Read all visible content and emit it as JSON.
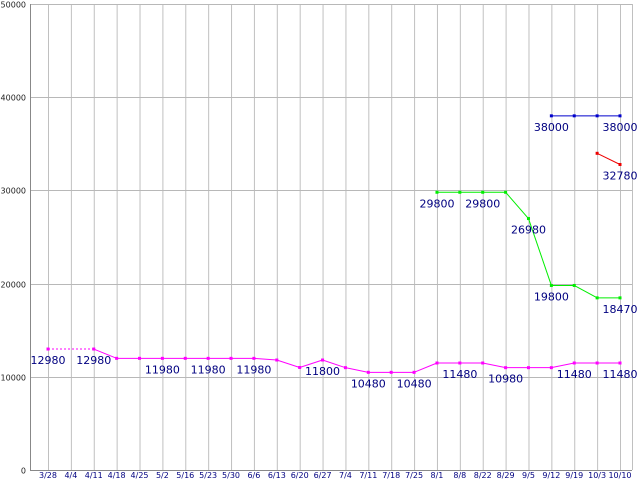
{
  "chart_data": {
    "type": "line",
    "title": "",
    "xlabel": "",
    "ylabel": "",
    "ylim": [
      0,
      50000
    ],
    "yticks": [
      "0",
      "10000",
      "20000",
      "30000",
      "40000",
      "50000"
    ],
    "grid": true,
    "legend": "none",
    "categories": [
      "3/28",
      "4/4",
      "4/11",
      "4/18",
      "4/25",
      "5/2",
      "5/16",
      "5/23",
      "5/30",
      "6/6",
      "6/13",
      "6/20",
      "6/27",
      "7/4",
      "7/11",
      "7/18",
      "7/25",
      "8/1",
      "8/8",
      "8/22",
      "8/29",
      "9/5",
      "9/12",
      "9/19",
      "10/3",
      "10/10"
    ],
    "series": [
      {
        "color": "#ff00ff",
        "values": [
          12980,
          null,
          12980,
          11980,
          11980,
          11980,
          11980,
          11980,
          11980,
          11980,
          11800,
          11000,
          11800,
          10980,
          10480,
          10480,
          10480,
          11480,
          11480,
          11480,
          10980,
          10980,
          10980,
          11480,
          11480,
          11480
        ],
        "dashed_segments": [
          [
            0,
            2
          ]
        ],
        "labels": [
          {
            "index": 0,
            "text": "12980"
          },
          {
            "index": 2,
            "text": "12980"
          },
          {
            "index": 5,
            "text": "11980"
          },
          {
            "index": 7,
            "text": "11980"
          },
          {
            "index": 9,
            "text": "11980"
          },
          {
            "index": 12,
            "text": "11800"
          },
          {
            "index": 14,
            "text": "10480"
          },
          {
            "index": 16,
            "text": "10480"
          },
          {
            "index": 18,
            "text": "11480"
          },
          {
            "index": 20,
            "text": "10980"
          },
          {
            "index": 23,
            "text": "11480"
          },
          {
            "index": 25,
            "text": "11480"
          }
        ]
      },
      {
        "color": "#00ee00",
        "values": [
          null,
          null,
          null,
          null,
          null,
          null,
          null,
          null,
          null,
          null,
          null,
          null,
          null,
          null,
          null,
          null,
          null,
          29800,
          29800,
          29800,
          29800,
          26980,
          19800,
          19800,
          18470,
          18470
        ],
        "labels": [
          {
            "index": 17,
            "text": "29800"
          },
          {
            "index": 19,
            "text": "29800"
          },
          {
            "index": 21,
            "text": "26980"
          },
          {
            "index": 22,
            "text": "19800"
          },
          {
            "index": 25,
            "text": "18470"
          }
        ]
      },
      {
        "color": "#0000cc",
        "values": [
          null,
          null,
          null,
          null,
          null,
          null,
          null,
          null,
          null,
          null,
          null,
          null,
          null,
          null,
          null,
          null,
          null,
          null,
          null,
          null,
          null,
          null,
          38000,
          38000,
          38000,
          38000
        ],
        "labels": [
          {
            "index": 22,
            "text": "38000"
          },
          {
            "index": 25,
            "text": "38000"
          }
        ]
      },
      {
        "color": "#ee0000",
        "values": [
          null,
          null,
          null,
          null,
          null,
          null,
          null,
          null,
          null,
          null,
          null,
          null,
          null,
          null,
          null,
          null,
          null,
          null,
          null,
          null,
          null,
          null,
          null,
          null,
          33980,
          32780
        ],
        "labels": [
          {
            "index": 25,
            "text": "32780"
          }
        ]
      }
    ]
  }
}
